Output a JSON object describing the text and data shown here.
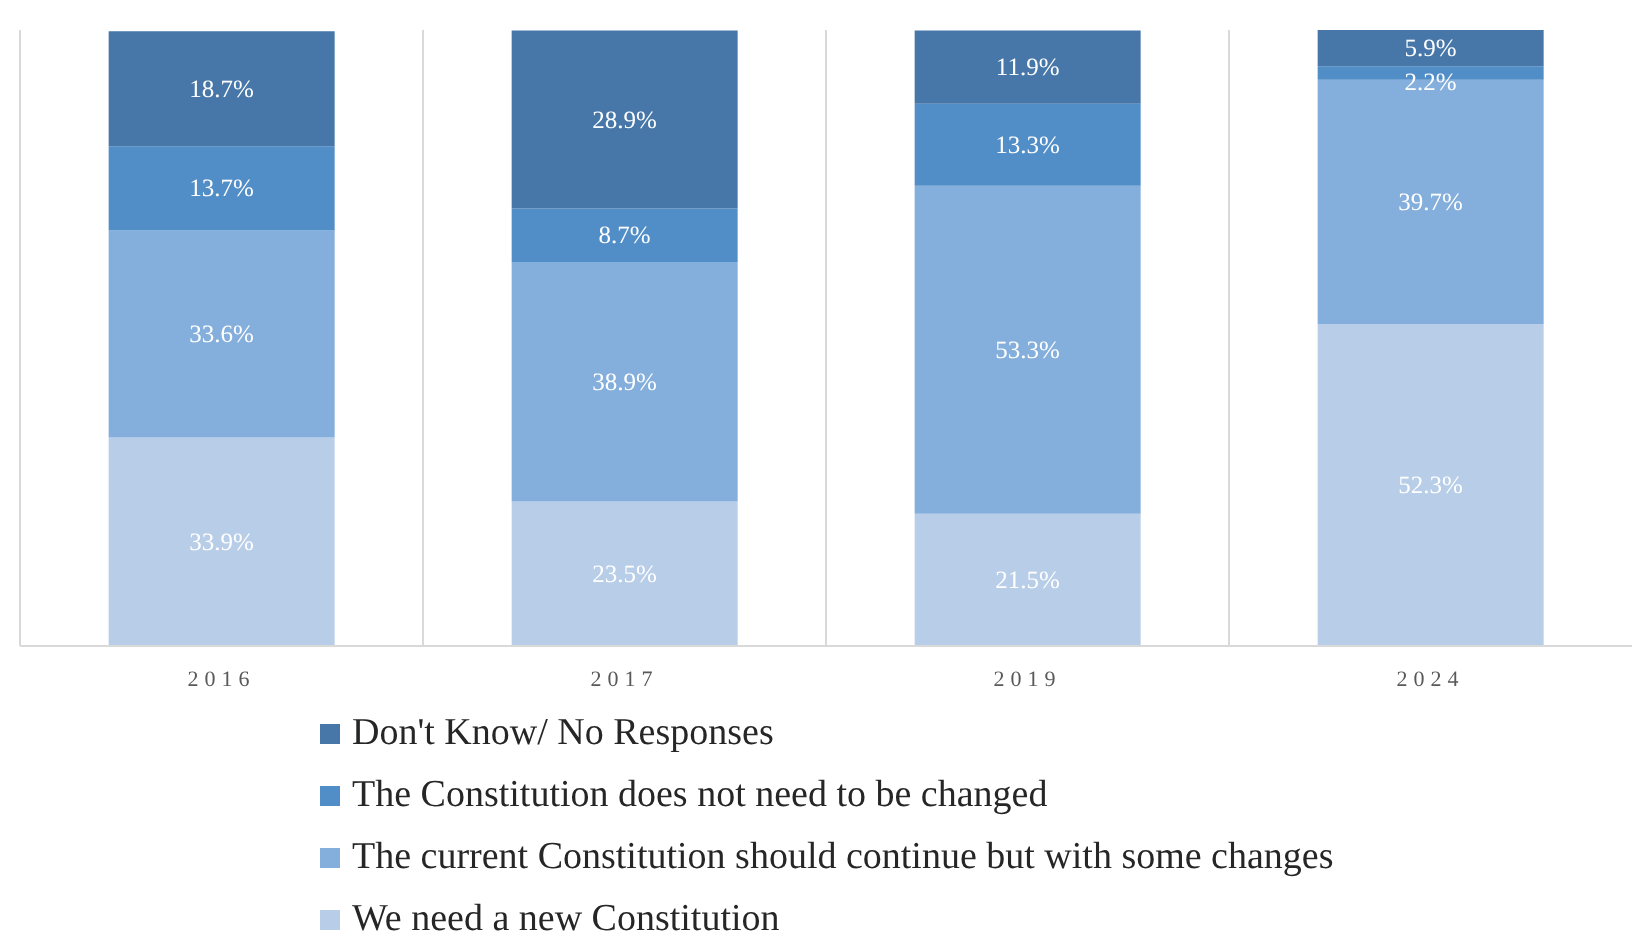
{
  "chart_data": {
    "type": "bar",
    "stacked": true,
    "categories": [
      "2016",
      "2017",
      "2019",
      "2024"
    ],
    "series": [
      {
        "name": "We need a new Constitution",
        "color": "#b8cde7",
        "values": [
          33.9,
          23.5,
          21.5,
          52.3
        ],
        "value_labels": [
          "33.9%",
          "23.5%",
          "21.5%",
          "52.3%"
        ]
      },
      {
        "name": "The current Constitution should continue but with some changes",
        "color": "#84aedb",
        "values": [
          33.6,
          38.9,
          53.3,
          39.7
        ],
        "value_labels": [
          "33.6%",
          "38.9%",
          "53.3%",
          "39.7%"
        ]
      },
      {
        "name": "The Constitution does not need to be changed",
        "color": "#518dc6",
        "values": [
          13.7,
          8.7,
          13.3,
          2.2
        ],
        "value_labels": [
          "13.7%",
          "8.7%",
          "13.3%",
          "2.2%"
        ]
      },
      {
        "name": "Don't Know/ No Responses",
        "color": "#4677a8",
        "values": [
          18.7,
          28.9,
          11.9,
          5.9
        ],
        "value_labels": [
          "18.7%",
          "28.9%",
          "11.9%",
          "5.9%"
        ]
      }
    ],
    "grid": "x",
    "legend": "bottom",
    "tick_labels": "x"
  }
}
